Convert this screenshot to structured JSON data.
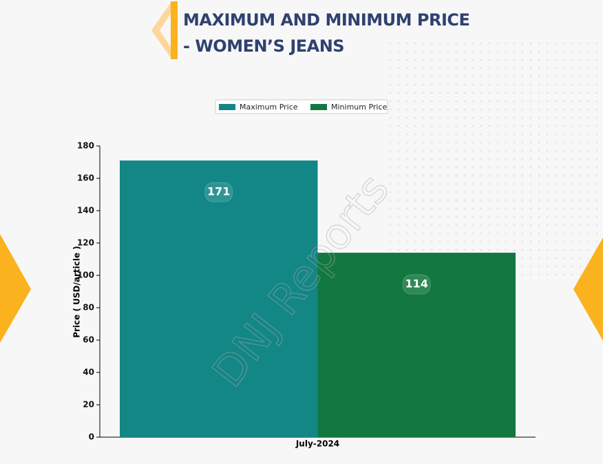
{
  "chart_data": {
    "type": "bar",
    "title": "MAXIMUM AND MINIMUM PRICE - WOMEN’S JEANS",
    "categories": [
      "July-2024"
    ],
    "series": [
      {
        "name": "Maximum Price",
        "color": "#138686",
        "values": [
          171
        ]
      },
      {
        "name": "Minimum Price",
        "color": "#13783f",
        "values": [
          114
        ]
      }
    ],
    "y_label": "Price ( USD/article )",
    "ylim": [
      0,
      180
    ],
    "yticks": [
      0,
      20,
      40,
      60,
      80,
      100,
      120,
      140,
      160,
      180
    ],
    "legend": "top",
    "watermark": "DNJ Reports"
  }
}
